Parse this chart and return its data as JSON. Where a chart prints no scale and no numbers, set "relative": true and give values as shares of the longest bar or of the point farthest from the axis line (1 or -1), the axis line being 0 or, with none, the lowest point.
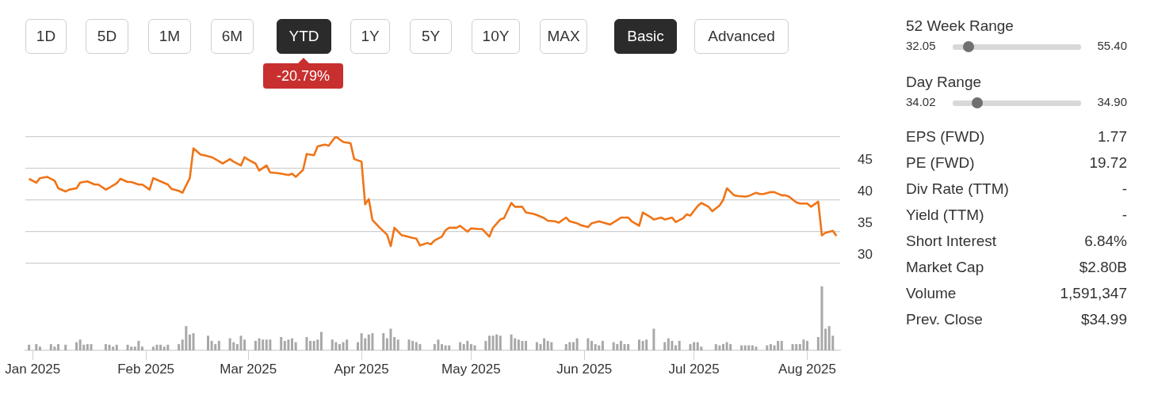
{
  "chart_data": [
    {
      "type": "line",
      "xlim": [
        "2024-12-30",
        "2025-08-10"
      ],
      "ylim": [
        30,
        50
      ],
      "yticks": [
        30,
        35,
        40,
        45,
        {
          "value": 50,
          "label": null
        }
      ],
      "grid": "y",
      "tick_labels": "y",
      "x": [
        "2024-12-31",
        "2025-01-02",
        "2025-01-03",
        "2025-01-05",
        "2025-01-07",
        "2025-01-08",
        "2025-01-10",
        "2025-01-11",
        "2025-01-13",
        "2025-01-14",
        "2025-01-16",
        "2025-01-18",
        "2025-01-19",
        "2025-01-21",
        "2025-01-22",
        "2025-01-24",
        "2025-01-25",
        "2025-01-27",
        "2025-01-28",
        "2025-01-30",
        "2025-01-31",
        "2025-02-02",
        "2025-02-03",
        "2025-02-05",
        "2025-02-07",
        "2025-02-08",
        "2025-02-10",
        "2025-02-11",
        "2025-02-13",
        "2025-02-14",
        "2025-02-16",
        "2025-02-17",
        "2025-02-19",
        "2025-02-20",
        "2025-02-22",
        "2025-02-24",
        "2025-02-25",
        "2025-02-27",
        "2025-02-28",
        "2025-03-01",
        "2025-03-03",
        "2025-03-04",
        "2025-03-06",
        "2025-03-07",
        "2025-03-09",
        "2025-03-10",
        "2025-03-12",
        "2025-03-13",
        "2025-03-14",
        "2025-03-16",
        "2025-03-17",
        "2025-03-19",
        "2025-03-20",
        "2025-03-22",
        "2025-03-23",
        "2025-03-25",
        "2025-03-26",
        "2025-03-27",
        "2025-03-29",
        "2025-03-30",
        "2025-04-01",
        "2025-04-02",
        "2025-04-03",
        "2025-04-04",
        "2025-04-06",
        "2025-04-08",
        "2025-04-09",
        "2025-04-10",
        "2025-04-12",
        "2025-04-13",
        "2025-04-15",
        "2025-04-16",
        "2025-04-17",
        "2025-04-19",
        "2025-04-20",
        "2025-04-21",
        "2025-04-23",
        "2025-04-24",
        "2025-04-25",
        "2025-04-27",
        "2025-04-28",
        "2025-04-30",
        "2025-05-01",
        "2025-05-03",
        "2025-05-04",
        "2025-05-06",
        "2025-05-07",
        "2025-05-09",
        "2025-05-10",
        "2025-05-12",
        "2025-05-13",
        "2025-05-15",
        "2025-05-16",
        "2025-05-18",
        "2025-05-19",
        "2025-05-21",
        "2025-05-22",
        "2025-05-24",
        "2025-05-25",
        "2025-05-27",
        "2025-05-28",
        "2025-05-30",
        "2025-05-31",
        "2025-06-02",
        "2025-06-03",
        "2025-06-05",
        "2025-06-08",
        "2025-06-10",
        "2025-06-11",
        "2025-06-13",
        "2025-06-14",
        "2025-06-16",
        "2025-06-17",
        "2025-06-19",
        "2025-06-20",
        "2025-06-22",
        "2025-06-23",
        "2025-06-25",
        "2025-06-26",
        "2025-06-28",
        "2025-06-29",
        "2025-06-30",
        "2025-07-02",
        "2025-07-03",
        "2025-07-05",
        "2025-07-06",
        "2025-07-08",
        "2025-07-09",
        "2025-07-10",
        "2025-07-12",
        "2025-07-13",
        "2025-07-15",
        "2025-07-16",
        "2025-07-18",
        "2025-07-19",
        "2025-07-20",
        "2025-07-22",
        "2025-07-23",
        "2025-07-25",
        "2025-07-26",
        "2025-07-27",
        "2025-07-29",
        "2025-07-30",
        "2025-08-01",
        "2025-08-02",
        "2025-08-04",
        "2025-08-05",
        "2025-08-06",
        "2025-08-08",
        "2025-08-09"
      ],
      "series": [
        {
          "color": "#f07417",
          "values": [
            43.3,
            42.7,
            43.4,
            43.6,
            43.0,
            41.8,
            41.3,
            41.6,
            41.8,
            42.7,
            42.9,
            42.4,
            42.4,
            41.6,
            41.9,
            42.6,
            43.3,
            42.8,
            42.8,
            42.4,
            42.4,
            41.6,
            43.4,
            42.9,
            42.4,
            41.7,
            41.4,
            41.1,
            43.4,
            48.1,
            47.1,
            47.0,
            46.7,
            46.4,
            45.7,
            46.4,
            46.0,
            45.4,
            46.7,
            46.3,
            45.7,
            44.6,
            45.4,
            44.3,
            44.2,
            44.1,
            43.9,
            44.1,
            43.6,
            44.7,
            47.2,
            47.0,
            48.4,
            48.7,
            48.5,
            50.0,
            49.5,
            49.1,
            48.9,
            46.4,
            46.0,
            39.3,
            40.1,
            36.8,
            35.6,
            34.5,
            32.7,
            35.6,
            34.4,
            34.3,
            34.0,
            33.9,
            32.8,
            33.2,
            33.0,
            33.6,
            34.2,
            35.2,
            35.6,
            35.6,
            35.9,
            35.0,
            35.5,
            35.4,
            35.4,
            34.2,
            35.6,
            36.9,
            37.1,
            39.5,
            38.9,
            38.9,
            38.0,
            37.8,
            37.6,
            37.1,
            36.7,
            36.6,
            36.4,
            37.2,
            36.6,
            36.3,
            36.0,
            35.7,
            36.3,
            36.6,
            36.1,
            36.8,
            37.2,
            37.2,
            36.6,
            35.9,
            38.0,
            37.3,
            36.9,
            37.2,
            36.9,
            37.2,
            36.5,
            37.1,
            37.7,
            37.5,
            39.0,
            39.5,
            38.9,
            38.2,
            39.1,
            40.0,
            41.8,
            40.7,
            40.6,
            40.5,
            40.6,
            41.1,
            40.9,
            40.9,
            41.2,
            41.2,
            40.7,
            40.7,
            40.5,
            39.6,
            39.4,
            39.4,
            38.9,
            39.7,
            34.4,
            34.8,
            35.1,
            34.3
          ]
        }
      ]
    },
    {
      "type": "bar",
      "relative": true,
      "xlim": [
        "2024-12-30",
        "2025-08-10"
      ],
      "xticks": [
        {
          "value": "2025-01-01",
          "label": "Jan 2025"
        },
        {
          "value": "2025-02-01",
          "label": "Feb 2025"
        },
        {
          "value": "2025-03-01",
          "label": "Mar 2025"
        },
        {
          "value": "2025-04-01",
          "label": "Apr 2025"
        },
        {
          "value": "2025-05-01",
          "label": "May 2025"
        },
        {
          "value": "2025-06-01",
          "label": "Jun 2025"
        },
        {
          "value": "2025-07-01",
          "label": "Jul 2025"
        },
        {
          "value": "2025-08-01",
          "label": "Aug 2025"
        }
      ],
      "tick_labels": "x",
      "x": [
        "2024-12-31",
        "2025-01-02",
        "2025-01-03",
        "2025-01-06",
        "2025-01-07",
        "2025-01-08",
        "2025-01-10",
        "2025-01-13",
        "2025-01-14",
        "2025-01-15",
        "2025-01-16",
        "2025-01-17",
        "2025-01-21",
        "2025-01-22",
        "2025-01-23",
        "2025-01-24",
        "2025-01-27",
        "2025-01-28",
        "2025-01-29",
        "2025-01-30",
        "2025-01-31",
        "2025-02-03",
        "2025-02-04",
        "2025-02-05",
        "2025-02-06",
        "2025-02-07",
        "2025-02-10",
        "2025-02-11",
        "2025-02-12",
        "2025-02-13",
        "2025-02-14",
        "2025-02-18",
        "2025-02-19",
        "2025-02-20",
        "2025-02-21",
        "2025-02-24",
        "2025-02-25",
        "2025-02-26",
        "2025-02-27",
        "2025-02-28",
        "2025-03-03",
        "2025-03-04",
        "2025-03-05",
        "2025-03-06",
        "2025-03-07",
        "2025-03-10",
        "2025-03-11",
        "2025-03-12",
        "2025-03-13",
        "2025-03-14",
        "2025-03-17",
        "2025-03-18",
        "2025-03-19",
        "2025-03-20",
        "2025-03-21",
        "2025-03-24",
        "2025-03-25",
        "2025-03-26",
        "2025-03-27",
        "2025-03-28",
        "2025-03-31",
        "2025-04-01",
        "2025-04-02",
        "2025-04-03",
        "2025-04-04",
        "2025-04-07",
        "2025-04-08",
        "2025-04-09",
        "2025-04-10",
        "2025-04-11",
        "2025-04-14",
        "2025-04-15",
        "2025-04-16",
        "2025-04-17",
        "2025-04-21",
        "2025-04-22",
        "2025-04-23",
        "2025-04-24",
        "2025-04-25",
        "2025-04-28",
        "2025-04-29",
        "2025-04-30",
        "2025-05-01",
        "2025-05-02",
        "2025-05-05",
        "2025-05-06",
        "2025-05-07",
        "2025-05-08",
        "2025-05-09",
        "2025-05-12",
        "2025-05-13",
        "2025-05-14",
        "2025-05-15",
        "2025-05-16",
        "2025-05-19",
        "2025-05-20",
        "2025-05-21",
        "2025-05-22",
        "2025-05-23",
        "2025-05-27",
        "2025-05-28",
        "2025-05-29",
        "2025-05-30",
        "2025-06-02",
        "2025-06-03",
        "2025-06-04",
        "2025-06-05",
        "2025-06-06",
        "2025-06-09",
        "2025-06-10",
        "2025-06-11",
        "2025-06-12",
        "2025-06-13",
        "2025-06-16",
        "2025-06-17",
        "2025-06-18",
        "2025-06-20",
        "2025-06-23",
        "2025-06-24",
        "2025-06-25",
        "2025-06-26",
        "2025-06-27",
        "2025-06-30",
        "2025-07-01",
        "2025-07-02",
        "2025-07-03",
        "2025-07-07",
        "2025-07-08",
        "2025-07-09",
        "2025-07-10",
        "2025-07-11",
        "2025-07-14",
        "2025-07-15",
        "2025-07-16",
        "2025-07-17",
        "2025-07-18",
        "2025-07-21",
        "2025-07-22",
        "2025-07-23",
        "2025-07-24",
        "2025-07-25",
        "2025-07-28",
        "2025-07-29",
        "2025-07-30",
        "2025-07-31",
        "2025-08-01",
        "2025-08-04",
        "2025-08-05",
        "2025-08-06",
        "2025-08-07",
        "2025-08-08"
      ],
      "series": [
        {
          "color": "#a8a8a8",
          "values": [
            0.09,
            0.1,
            0.06,
            0.1,
            0.06,
            0.1,
            0.09,
            0.13,
            0.17,
            0.09,
            0.1,
            0.1,
            0.1,
            0.09,
            0.06,
            0.09,
            0.09,
            0.06,
            0.06,
            0.15,
            0.06,
            0.06,
            0.09,
            0.09,
            0.06,
            0.09,
            0.1,
            0.17,
            0.38,
            0.25,
            0.27,
            0.23,
            0.15,
            0.1,
            0.15,
            0.19,
            0.13,
            0.1,
            0.23,
            0.17,
            0.15,
            0.19,
            0.17,
            0.17,
            0.17,
            0.21,
            0.15,
            0.17,
            0.19,
            0.13,
            0.21,
            0.15,
            0.15,
            0.17,
            0.29,
            0.17,
            0.13,
            0.1,
            0.13,
            0.17,
            0.13,
            0.27,
            0.19,
            0.25,
            0.27,
            0.27,
            0.19,
            0.34,
            0.21,
            0.17,
            0.17,
            0.15,
            0.13,
            0.1,
            0.1,
            0.17,
            0.1,
            0.08,
            0.08,
            0.13,
            0.1,
            0.15,
            0.1,
            0.08,
            0.15,
            0.23,
            0.23,
            0.25,
            0.23,
            0.25,
            0.19,
            0.17,
            0.15,
            0.15,
            0.13,
            0.1,
            0.19,
            0.15,
            0.13,
            0.1,
            0.13,
            0.13,
            0.19,
            0.19,
            0.15,
            0.1,
            0.08,
            0.15,
            0.13,
            0.1,
            0.15,
            0.1,
            0.1,
            0.17,
            0.15,
            0.17,
            0.34,
            0.13,
            0.19,
            0.15,
            0.08,
            0.15,
            0.1,
            0.13,
            0.13,
            0.06,
            0.1,
            0.08,
            0.1,
            0.13,
            0.1,
            0.08,
            0.08,
            0.08,
            0.08,
            0.06,
            0.08,
            0.1,
            0.08,
            0.15,
            0.15,
            0.1,
            0.1,
            0.1,
            0.17,
            0.15,
            0.21,
            1,
            0.34,
            0.38,
            0.23
          ]
        }
      ]
    },
    {
      "type": "other",
      "annotations": [
        "1D",
        "5D",
        "1M",
        "6M",
        "YTD",
        "1Y",
        "5Y",
        "10Y",
        "MAX",
        "Basic",
        "Advanced",
        "-20.79%"
      ]
    },
    {
      "type": "other",
      "annotations": [
        "52 Week Range",
        "32.05",
        "55.40",
        "Day Range",
        "34.02",
        "34.90",
        "EPS (FWD)",
        "1.77",
        "PE (FWD)",
        "19.72",
        "Div Rate (TTM)",
        "-",
        "Yield (TTM)",
        "-",
        "Short Interest",
        "6.84%",
        "Market Cap",
        "$2.80B",
        "Volume",
        "1,591,347",
        "Prev. Close",
        "$34.99"
      ]
    }
  ]
}
